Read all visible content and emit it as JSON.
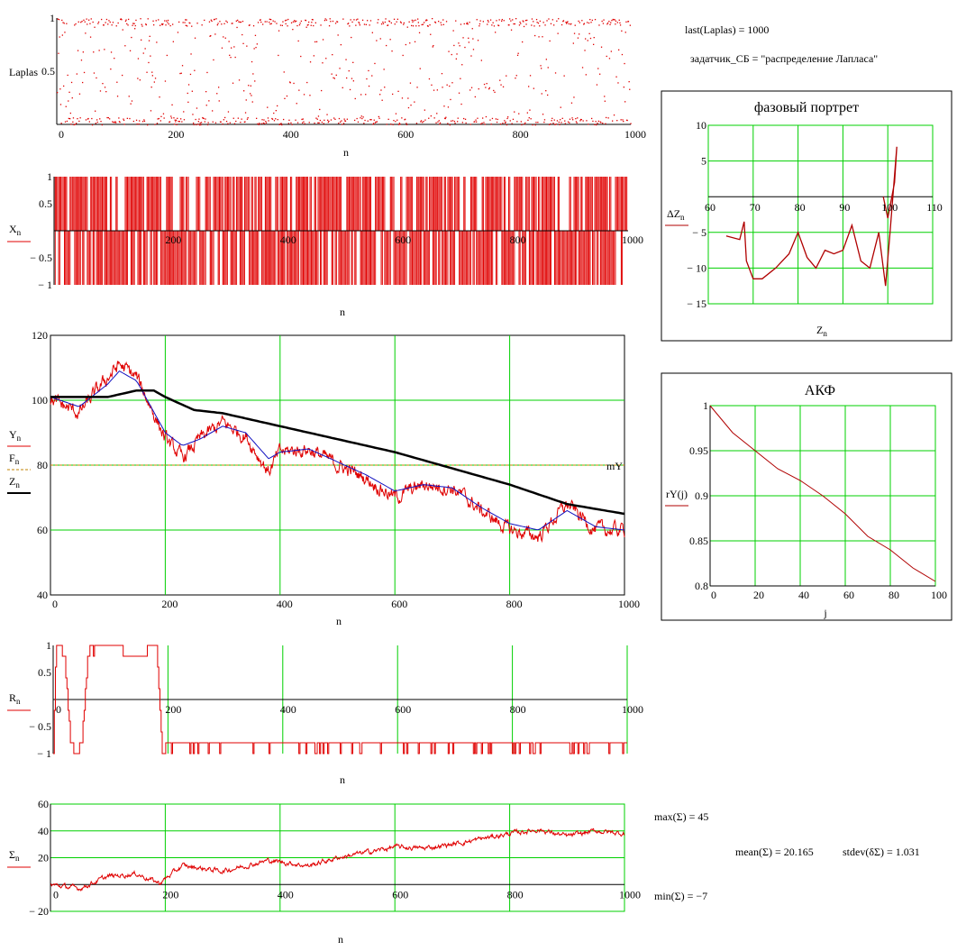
{
  "results": {
    "last_laplas": "last(Laplas) = 1000",
    "generator": "задатчик_СБ = \"распределение Лапласа\"",
    "max_sigma": "max(Σ) = 45",
    "mean_sigma": "mean(Σ) = 20.165",
    "stdev_dsigma": "stdev(δΣ) = 1.031",
    "min_sigma": "min(Σ) = −7"
  },
  "colors": {
    "red": "#e00000",
    "blue": "#1010c0",
    "black": "#000000",
    "grid": "#00d000",
    "dashed": "#c08000"
  },
  "chart_data": [
    {
      "id": "laplas",
      "type": "scatter",
      "x_range": [
        0,
        1000
      ],
      "y_range": [
        0,
        1
      ],
      "ylabel": "Laplas",
      "xlabel": "n",
      "x_ticks": [
        "0",
        "200",
        "400",
        "600",
        "800",
        "1000"
      ],
      "y_ticks": [
        "0.5",
        "1"
      ],
      "points": 1000,
      "description": "uniform dots in [0,1]"
    },
    {
      "id": "x_n",
      "type": "bar",
      "x_range": [
        0,
        1000
      ],
      "y_range": [
        -1,
        1
      ],
      "ylabel": "X",
      "ylabel_sub": "n",
      "xlabel": "n",
      "x_ticks": [
        "200",
        "400",
        "600",
        "800",
        "1000"
      ],
      "y_ticks": [
        "1",
        "0.5",
        "− 0.5",
        "− 1"
      ],
      "values_domain": [
        -1,
        1
      ]
    },
    {
      "id": "yfz",
      "type": "line",
      "x_range": [
        0,
        1000
      ],
      "y_range": [
        40,
        120
      ],
      "xlabel": "n",
      "x_ticks": [
        "0",
        "200",
        "400",
        "600",
        "800",
        "1000"
      ],
      "y_ticks": [
        "40",
        "60",
        "80",
        "100",
        "120"
      ],
      "legend": [
        {
          "name": "Y",
          "sub": "n",
          "color": "#e00000"
        },
        {
          "name": "F",
          "sub": "n",
          "color": "#c08000"
        },
        {
          "name": "Z",
          "sub": "n",
          "color": "#000000"
        }
      ],
      "mY_label": "mY",
      "mY": 80,
      "series": [
        {
          "name": "Y",
          "x": [
            0,
            50,
            100,
            120,
            150,
            175,
            200,
            230,
            260,
            300,
            340,
            380,
            400,
            450,
            500,
            550,
            600,
            650,
            700,
            750,
            800,
            850,
            900,
            950,
            1000
          ],
          "values": [
            100,
            96,
            107,
            111,
            107,
            98,
            88,
            82,
            88,
            93,
            89,
            78,
            84,
            85,
            80,
            76,
            70,
            74,
            73,
            66,
            60,
            58,
            68,
            60,
            60
          ]
        },
        {
          "name": "F",
          "x": [
            0,
            50,
            100,
            120,
            150,
            175,
            200,
            230,
            260,
            300,
            340,
            380,
            400,
            450,
            500,
            550,
            600,
            650,
            700,
            750,
            800,
            850,
            900,
            950,
            1000
          ],
          "values": [
            101,
            98,
            105,
            109,
            106,
            98,
            90,
            86,
            88,
            92,
            90,
            82,
            84,
            85,
            81,
            77,
            72,
            74,
            73,
            67,
            62,
            60,
            66,
            61,
            60
          ]
        },
        {
          "name": "Z",
          "x": [
            0,
            100,
            150,
            180,
            200,
            250,
            300,
            400,
            500,
            600,
            700,
            800,
            900,
            1000
          ],
          "values": [
            101,
            101,
            103,
            103,
            101,
            97,
            96,
            92,
            88,
            84,
            79,
            74,
            68,
            65
          ]
        }
      ]
    },
    {
      "id": "r_n",
      "type": "line",
      "x_range": [
        0,
        1000
      ],
      "y_range": [
        -1,
        1
      ],
      "ylabel": "R",
      "ylabel_sub": "n",
      "xlabel": "n",
      "x_ticks": [
        "0",
        "200",
        "400",
        "600",
        "800",
        "1000"
      ],
      "y_ticks": [
        "1",
        "0.5",
        "− 0.5",
        "− 1"
      ],
      "series": [
        {
          "name": "R",
          "x": [
            0,
            5,
            10,
            20,
            30,
            40,
            50,
            60,
            65,
            100,
            140,
            180,
            190,
            200,
            1000
          ],
          "values": [
            -1,
            1,
            1,
            0.8,
            -0.8,
            -1,
            -0.8,
            0.8,
            1,
            1,
            0.8,
            1,
            -1,
            -0.8,
            -0.8
          ]
        }
      ]
    },
    {
      "id": "sigma",
      "type": "line",
      "x_range": [
        0,
        1000
      ],
      "y_range": [
        -20,
        60
      ],
      "ylabel": "Σ",
      "ylabel_sub": "n",
      "xlabel": "n",
      "x_ticks": [
        "0",
        "200",
        "400",
        "600",
        "800",
        "1000"
      ],
      "y_ticks": [
        "60",
        "40",
        "20",
        "− 20"
      ],
      "series": [
        {
          "name": "Σ",
          "x": [
            0,
            50,
            100,
            150,
            190,
            230,
            300,
            380,
            450,
            500,
            600,
            650,
            700,
            750,
            800,
            850,
            900,
            950,
            1000
          ],
          "values": [
            0,
            -3,
            6,
            8,
            1,
            14,
            10,
            18,
            14,
            20,
            28,
            27,
            30,
            34,
            38,
            41,
            36,
            40,
            38
          ]
        }
      ]
    },
    {
      "id": "phase",
      "type": "line",
      "title": "фазовый портрет",
      "x_range": [
        60,
        110
      ],
      "y_range": [
        -15,
        10
      ],
      "xlabel": "Z",
      "xlabel_sub": "n",
      "ylabel": "ΔZ",
      "ylabel_sub": "n",
      "x_ticks": [
        "60",
        "70",
        "80",
        "90",
        "100",
        "110"
      ],
      "y_ticks": [
        "10",
        "5",
        "− 5",
        "− 10",
        "− 15"
      ],
      "series": [
        {
          "name": "ΔZ",
          "x": [
            64,
            67,
            68,
            68.5,
            70,
            72,
            75,
            78,
            80,
            82,
            84,
            86,
            88,
            90,
            92,
            94,
            96,
            98,
            99.5,
            100.5,
            102,
            101.5,
            100,
            99
          ],
          "values": [
            -5.5,
            -6,
            -3.5,
            -9,
            -11.5,
            -11.5,
            -10,
            -8,
            -5,
            -8.5,
            -10,
            -7.5,
            -8,
            -7.5,
            -4,
            -9,
            -10,
            -5,
            -12.5,
            -5,
            7,
            2,
            -3,
            0
          ]
        }
      ]
    },
    {
      "id": "akf",
      "type": "line",
      "title": "АКФ",
      "x_range": [
        0,
        100
      ],
      "y_range": [
        0.8,
        1
      ],
      "xlabel": "j",
      "ylabel": "rY(j)",
      "x_ticks": [
        "0",
        "20",
        "40",
        "60",
        "80",
        "100"
      ],
      "y_ticks": [
        "1",
        "0.95",
        "0.9",
        "0.85",
        "0.8"
      ],
      "series": [
        {
          "name": "rY",
          "x": [
            0,
            10,
            20,
            30,
            40,
            50,
            60,
            70,
            80,
            90,
            100
          ],
          "values": [
            1,
            0.97,
            0.95,
            0.93,
            0.917,
            0.9,
            0.88,
            0.855,
            0.84,
            0.82,
            0.805
          ]
        }
      ]
    }
  ]
}
